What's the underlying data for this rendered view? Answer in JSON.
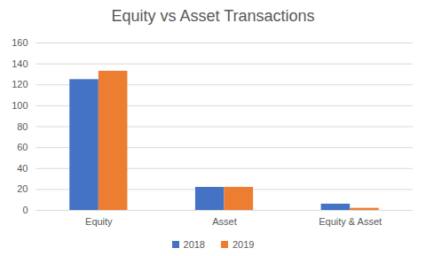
{
  "chart_data": {
    "type": "bar",
    "title": "Equity vs Asset Transactions",
    "categories": [
      "Equity",
      "Asset",
      "Equity & Asset"
    ],
    "series": [
      {
        "name": "2018",
        "color": "#4472c4",
        "values": [
          125,
          22,
          6
        ]
      },
      {
        "name": "2019",
        "color": "#ed7d31",
        "values": [
          133,
          22,
          2
        ]
      }
    ],
    "ylim": [
      0,
      160
    ],
    "yticks": [
      0,
      20,
      40,
      60,
      80,
      100,
      120,
      140,
      160
    ],
    "grid": true,
    "legend": "bottom"
  }
}
